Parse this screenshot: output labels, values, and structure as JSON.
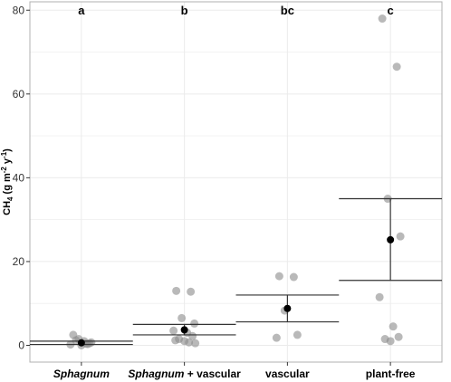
{
  "chart_data": {
    "type": "scatter",
    "ylabel": {
      "prefix": "CH",
      "sub": "4",
      "mid": " (g  m",
      "sup1": "-2",
      "gap": " y",
      "sup2": "-1",
      "end": ")"
    },
    "ylim": [
      -4,
      82
    ],
    "yticks": [
      0,
      20,
      40,
      60,
      80
    ],
    "grid": true,
    "categories": [
      {
        "parts": [
          {
            "text": "Sphagnum",
            "italic": true
          }
        ]
      },
      {
        "parts": [
          {
            "text": "Sphagnum",
            "italic": true
          },
          {
            "text": " + vascular",
            "italic": false
          }
        ]
      },
      {
        "parts": [
          {
            "text": "vascular",
            "italic": false
          }
        ]
      },
      {
        "parts": [
          {
            "text": "plant-free",
            "italic": false
          }
        ]
      }
    ],
    "letters": [
      "a",
      "b",
      "bc",
      "c"
    ],
    "points": [
      [
        2.5,
        0.3,
        1.5,
        0.7,
        0.2,
        1.0,
        0.5,
        1.2,
        0.0,
        0.4
      ],
      [
        13.0,
        12.8,
        6.5,
        5.2,
        3.5,
        3.0,
        2.2,
        1.5,
        1.0,
        0.7,
        1.2,
        0.5
      ],
      [
        16.5,
        16.3,
        8.3,
        2.5,
        1.8
      ],
      [
        78.0,
        66.5,
        35.0,
        26.0,
        11.5,
        4.5,
        2.0,
        1.5,
        1.0
      ]
    ],
    "means": [
      0.6,
      3.7,
      8.8,
      25.2
    ],
    "ci_lower": [
      0.2,
      2.5,
      5.6,
      15.5
    ],
    "ci_upper": [
      1.0,
      5.0,
      12.0,
      35.0
    ],
    "colors": {
      "point": "#8a8a8a",
      "mean": "#000000",
      "errorbar": "#333333",
      "grid": "#ebebeb",
      "panel_border": "#b0b0b0"
    }
  }
}
